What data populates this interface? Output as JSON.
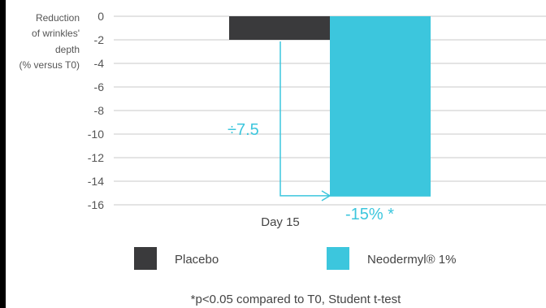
{
  "chart_data": {
    "type": "bar",
    "ylabel_lines": [
      "Reduction",
      "of wrinkles'",
      "depth",
      "(% versus T0)"
    ],
    "categories": [
      "Day 15"
    ],
    "series": [
      {
        "name": "Placebo",
        "values": [
          -2
        ],
        "color": "#3a3a3c"
      },
      {
        "name": "Neodermyl® 1%",
        "values": [
          -15.3
        ],
        "color": "#3cc6dd"
      }
    ],
    "ylim": [
      -16,
      0
    ],
    "yticks": [
      0,
      -2,
      -4,
      -6,
      -8,
      -10,
      -12,
      -14,
      -16
    ],
    "grid": true,
    "legend": "bottom",
    "annotations": {
      "ratio": "÷7.5",
      "percent": "-15% *"
    },
    "footnote": "*p<0.05 compared to T0, Student t-test"
  }
}
